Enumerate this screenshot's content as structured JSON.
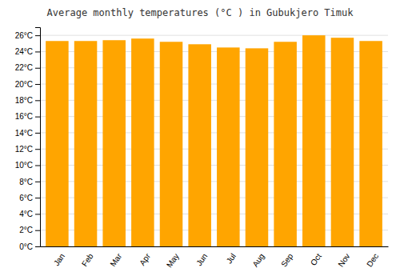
{
  "chart_data": {
    "type": "bar",
    "title": "Average monthly temperatures (°C ) in Gubukjero Timuk",
    "categories": [
      "Jan",
      "Feb",
      "Mar",
      "Apr",
      "May",
      "Jun",
      "Jul",
      "Aug",
      "Sep",
      "Oct",
      "Nov",
      "Dec"
    ],
    "values": [
      25.3,
      25.3,
      25.4,
      25.6,
      25.2,
      24.9,
      24.5,
      24.4,
      25.2,
      26.0,
      25.7,
      25.3
    ],
    "color": "#FFA500",
    "ylim": [
      0,
      27
    ],
    "yticks": [
      {
        "value": 0,
        "label": "0°C"
      },
      {
        "value": 2,
        "label": "2°C"
      },
      {
        "value": 4,
        "label": "4°C"
      },
      {
        "value": 6,
        "label": "6°C"
      },
      {
        "value": 8,
        "label": "8°C"
      },
      {
        "value": 10,
        "label": "10°C"
      },
      {
        "value": 12,
        "label": "12°C"
      },
      {
        "value": 14,
        "label": "14°C"
      },
      {
        "value": 16,
        "label": "16°C"
      },
      {
        "value": 18,
        "label": "18°C"
      },
      {
        "value": 20,
        "label": "20°C"
      },
      {
        "value": 22,
        "label": "22°C"
      },
      {
        "value": 24,
        "label": "24°C"
      },
      {
        "value": 26,
        "label": "26°C"
      }
    ],
    "grid": true
  }
}
